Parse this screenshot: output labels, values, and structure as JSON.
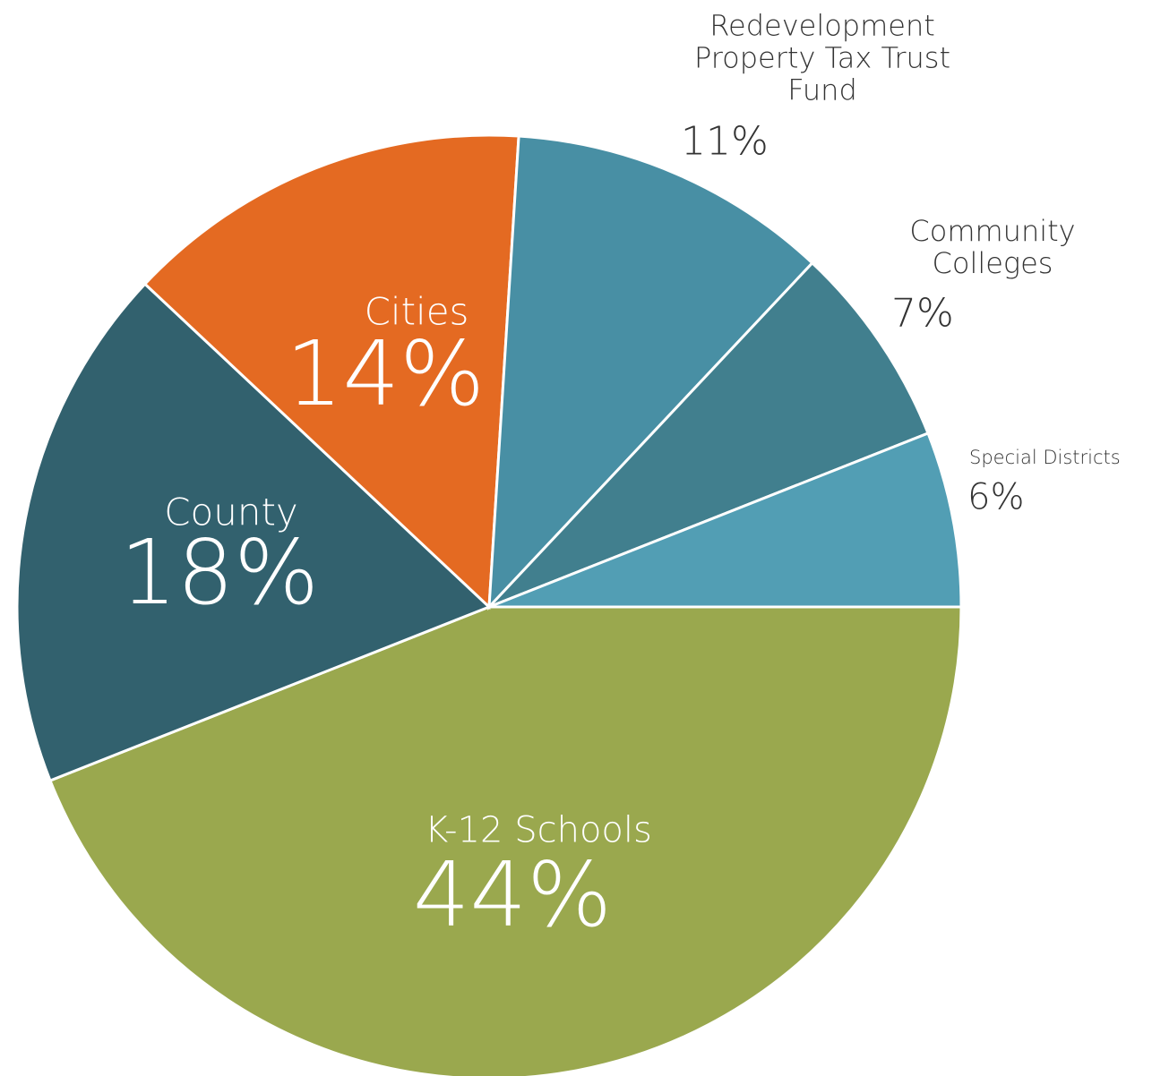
{
  "chart_data": {
    "type": "pie",
    "categories": [
      "K-12 Schools",
      "County",
      "Cities",
      "Redevelopment Property Tax Trust Fund",
      "Community Colleges",
      "Special Districts"
    ],
    "values": [
      44,
      18,
      14,
      11,
      7,
      6
    ],
    "value_labels": [
      "44%",
      "18%",
      "14%",
      "11%",
      "7%",
      "6%"
    ],
    "colors": [
      "#9aa84e",
      "#32616e",
      "#e46a22",
      "#488fa4",
      "#417f8e",
      "#529eb4"
    ]
  }
}
